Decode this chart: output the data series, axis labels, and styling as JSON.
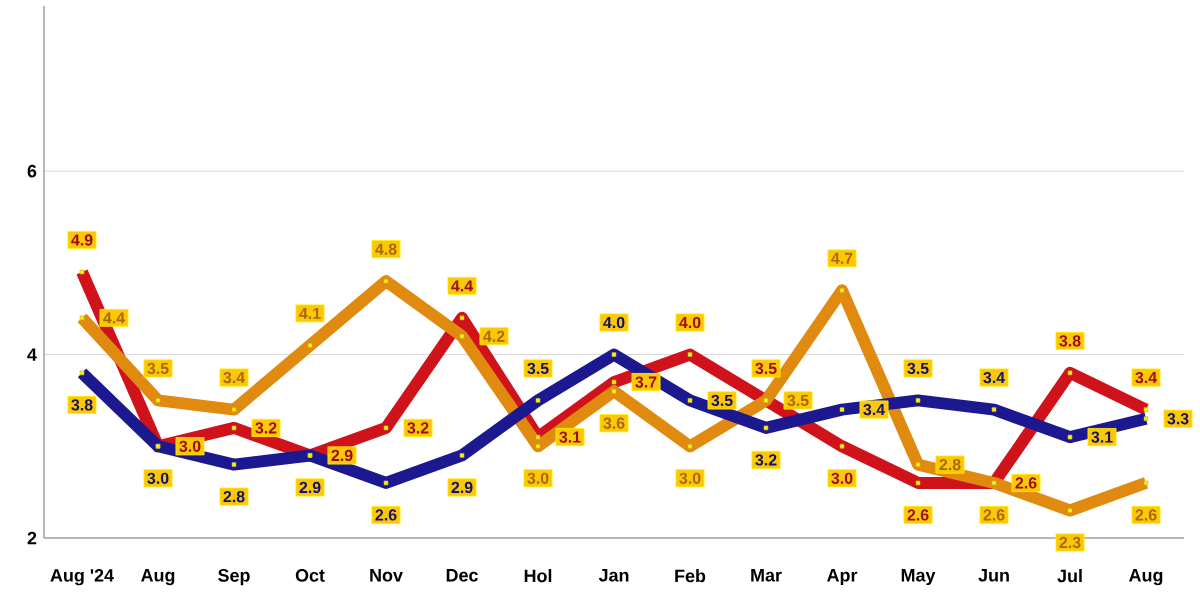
{
  "chart_data": {
    "type": "line",
    "categories": [
      "Aug '24",
      "Aug",
      "Sep",
      "Oct",
      "Nov",
      "Dec",
      "Hol",
      "Jan",
      "Feb",
      "Mar",
      "Apr",
      "May",
      "Jun",
      "Jul",
      "Aug"
    ],
    "series": [
      {
        "color": "#d0121b",
        "values": [
          4.9,
          3.0,
          3.2,
          2.9,
          3.2,
          4.4,
          3.1,
          3.7,
          4.0,
          3.5,
          3.0,
          2.6,
          2.6,
          3.8,
          3.4
        ],
        "value_labels": [
          "4.9",
          "3.0",
          "3.2",
          "2.9",
          "3.2",
          "4.4",
          "3.1",
          "3.7",
          "4.0",
          "3.5",
          "3.0",
          "2.6",
          "2.6",
          "3.8",
          "3.4"
        ]
      },
      {
        "color": "#e08a10",
        "values": [
          4.4,
          3.5,
          3.4,
          4.1,
          4.8,
          4.2,
          3.0,
          3.6,
          3.0,
          3.5,
          4.7,
          2.8,
          2.6,
          2.3,
          2.6
        ],
        "value_labels": [
          "4.4",
          "3.5",
          "3.4",
          "4.1",
          "4.8",
          "4.2",
          "3.0",
          "3.6",
          "3.0",
          "3.5",
          "4.7",
          "2.8",
          "2.6",
          "2.3",
          "2.6"
        ]
      },
      {
        "color": "#1c1890",
        "values": [
          3.8,
          3.0,
          2.8,
          2.9,
          2.6,
          2.9,
          3.5,
          4.0,
          3.5,
          3.2,
          3.4,
          3.5,
          3.4,
          3.1,
          3.3
        ],
        "value_labels": [
          "3.8",
          "3.0",
          "2.8",
          "2.9",
          "2.6",
          "2.9",
          "3.5",
          "4.0",
          "3.5",
          "3.2",
          "3.4",
          "3.5",
          "3.4",
          "3.1",
          "3.3"
        ]
      }
    ],
    "ylim": [
      2,
      7.8
    ],
    "yticks": [
      2,
      4,
      6
    ],
    "grid": "y",
    "marker": "square",
    "line_style": "solid"
  }
}
